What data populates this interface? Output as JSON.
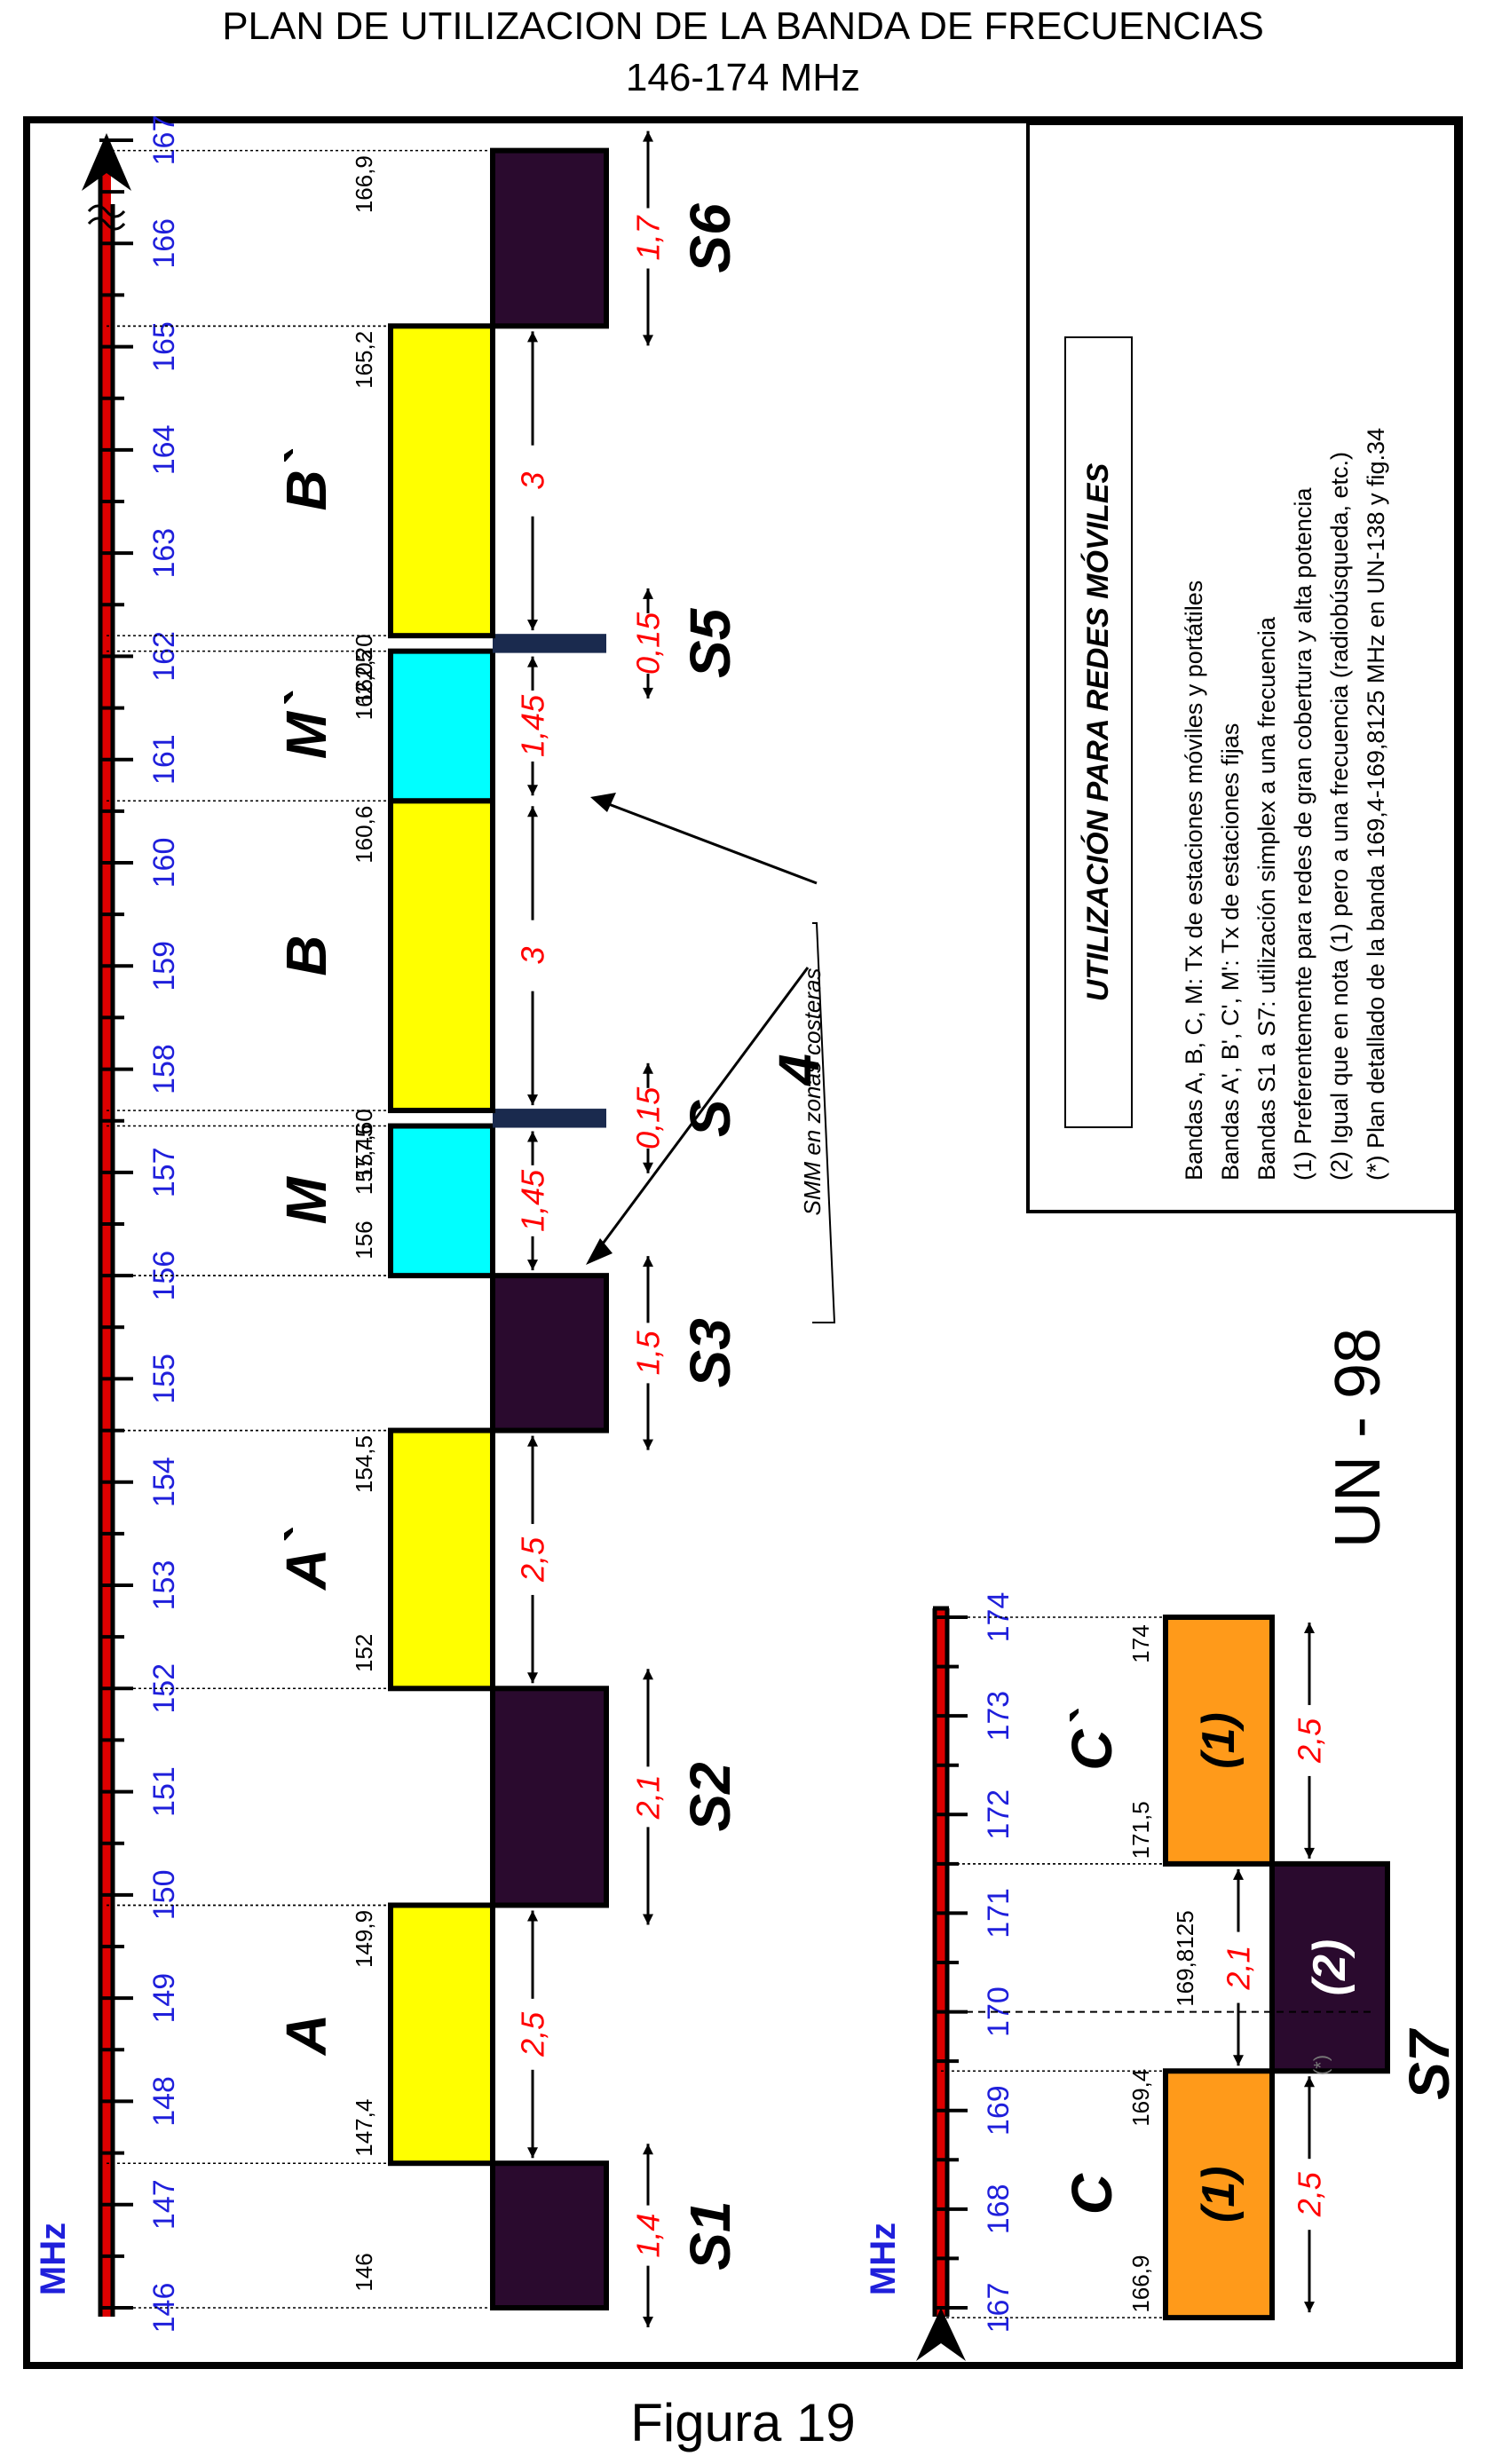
{
  "header": {
    "title_line1": "PLAN DE UTILIZACION DE LA BANDA DE FRECUENCIAS",
    "title_line2": "146-174 MHz"
  },
  "footer": {
    "caption": "Figura  19"
  },
  "unit_label": "MHz",
  "main_axis": {
    "ticks": [
      "146",
      "147",
      "148",
      "149",
      "150",
      "151",
      "152",
      "153",
      "154",
      "155",
      "156",
      "157",
      "158",
      "159",
      "160",
      "161",
      "162",
      "163",
      "164",
      "165",
      "166",
      "167"
    ]
  },
  "bands": [
    {
      "id": "S1",
      "label": "S1",
      "start": 146,
      "end": 147.4,
      "kind": "simplex",
      "color": "#2a0a2e",
      "edge_left": "146",
      "width_label": "1,4"
    },
    {
      "id": "A",
      "label": "A",
      "start": 147.4,
      "end": 149.9,
      "kind": "mobile",
      "color": "#ffff00",
      "edge_left": "147,4",
      "edge_right": "149,9",
      "width_label": "2,5"
    },
    {
      "id": "S2",
      "label": "S2",
      "start": 149.9,
      "end": 152,
      "kind": "simplex",
      "color": "#2a0a2e",
      "width_label": "2,1"
    },
    {
      "id": "A2",
      "label": "A`",
      "start": 152,
      "end": 154.5,
      "kind": "mobile",
      "color": "#ffff00",
      "edge_left": "152",
      "edge_right": "154,5",
      "width_label": "2,5"
    },
    {
      "id": "S3",
      "label": "S3",
      "start": 154.5,
      "end": 156,
      "kind": "simplex",
      "color": "#2a0a2e",
      "width_label": "1,5"
    },
    {
      "id": "M",
      "label": "M",
      "start": 156,
      "end": 157.45,
      "kind": "maritime",
      "color": "#00ffff",
      "edge_left": "156",
      "edge_right": "157,45",
      "width_label": "1,45"
    },
    {
      "id": "S",
      "label": "S",
      "start": 157.45,
      "end": 157.6,
      "kind": "simplex-thin",
      "color": "#1a2a4e",
      "edge_right": "157,60",
      "width_label": "0,15"
    },
    {
      "id": "B",
      "label": "B",
      "start": 157.6,
      "end": 160.6,
      "kind": "mobile",
      "color": "#ffff00",
      "edge_right": "160,6",
      "width_label": "3"
    },
    {
      "id": "M2",
      "label": "M`",
      "start": 160.6,
      "end": 162.05,
      "kind": "maritime",
      "color": "#00ffff",
      "edge_right": "162,05",
      "width_label": "1,45"
    },
    {
      "id": "S5",
      "label": "S5",
      "start": 162.05,
      "end": 162.2,
      "kind": "simplex-thin",
      "color": "#1a2a4e",
      "edge_right": "162,20",
      "width_label": "0,15"
    },
    {
      "id": "B2",
      "label": "B`",
      "start": 162.2,
      "end": 165.2,
      "kind": "mobile",
      "color": "#ffff00",
      "edge_right": "165,2",
      "width_label": "3"
    },
    {
      "id": "S6",
      "label": "S6",
      "start": 165.2,
      "end": 166.9,
      "kind": "simplex",
      "color": "#2a0a2e",
      "edge_right": "166,9",
      "width_label": "1,7"
    }
  ],
  "smm_note": "SMM en zonas costeras",
  "smm_number": "4",
  "legend": {
    "box_title": "UTILIZACIÓN PARA REDES  MÓVILES",
    "lines": [
      "Bandas A, B, C, M: Tx de estaciones móviles y portátiles",
      "Bandas A', B', C', M': Tx de estaciones fijas",
      "Bandas S1 a S7: utilización simplex a una frecuencia",
      "(1) Preferentemente para redes de gran cobertura y alta potencia",
      "(2) Igual que en nota (1) pero a una frecuencia (radiobúsqueda, etc.)",
      "(*) Plan detallado de la banda 169,4-169,8125 MHz en UN-138 y fig.34"
    ]
  },
  "code_label": "UN - 98",
  "sub_axis": {
    "ticks": [
      "167",
      "168",
      "169",
      "170",
      "171",
      "172",
      "173",
      "174"
    ]
  },
  "sub_bands": [
    {
      "id": "C",
      "label": "C",
      "note": "(1)",
      "start": 166.9,
      "end": 169.4,
      "color": "#ff9a1a",
      "edge_left": "166,9",
      "edge_right": "169,4",
      "width_label": "2,5"
    },
    {
      "id": "S7",
      "label": "S7",
      "note": "(2)",
      "start": 169.4,
      "end": 171.5,
      "color": "#2a0a2e",
      "edge_right": "169,8125",
      "width_label": "2,1",
      "star": "(*)"
    },
    {
      "id": "C2",
      "label": "C`",
      "note": "(1)",
      "start": 171.5,
      "end": 174,
      "color": "#ff9a1a",
      "edge_left": "171,5",
      "edge_right": "174",
      "width_label": "2,5"
    }
  ],
  "colors": {
    "tick_blue": "#1f1fdb",
    "value_red": "#ff0000",
    "rail_red": "#dd0000"
  }
}
